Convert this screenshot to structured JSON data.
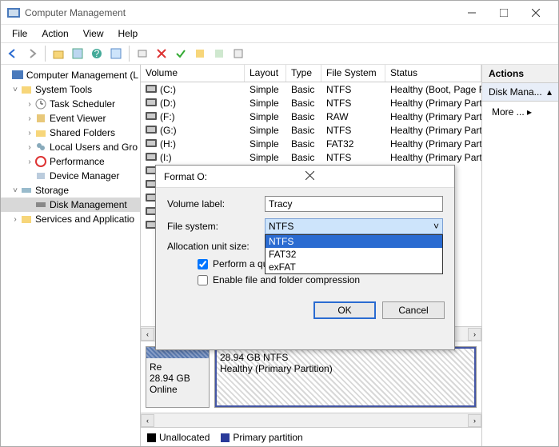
{
  "window": {
    "title": "Computer Management",
    "menus": [
      "File",
      "Action",
      "View",
      "Help"
    ]
  },
  "tree": {
    "root": "Computer Management (L",
    "system_tools": "System Tools",
    "task_scheduler": "Task Scheduler",
    "event_viewer": "Event Viewer",
    "shared_folders": "Shared Folders",
    "local_users": "Local Users and Gro",
    "performance": "Performance",
    "device_manager": "Device Manager",
    "storage": "Storage",
    "disk_management": "Disk Management",
    "services_apps": "Services and Applicatio"
  },
  "columns": {
    "volume": "Volume",
    "layout": "Layout",
    "type": "Type",
    "filesystem": "File System",
    "status": "Status"
  },
  "volumes": [
    {
      "v": "(C:)",
      "l": "Simple",
      "t": "Basic",
      "fs": "NTFS",
      "s": "Healthy (Boot, Page F"
    },
    {
      "v": "(D:)",
      "l": "Simple",
      "t": "Basic",
      "fs": "NTFS",
      "s": "Healthy (Primary Part"
    },
    {
      "v": "(F:)",
      "l": "Simple",
      "t": "Basic",
      "fs": "RAW",
      "s": "Healthy (Primary Part"
    },
    {
      "v": "(G:)",
      "l": "Simple",
      "t": "Basic",
      "fs": "NTFS",
      "s": "Healthy (Primary Part"
    },
    {
      "v": "(H:)",
      "l": "Simple",
      "t": "Basic",
      "fs": "FAT32",
      "s": "Healthy (Primary Part"
    },
    {
      "v": "(I:)",
      "l": "Simple",
      "t": "Basic",
      "fs": "NTFS",
      "s": "Healthy (Primary Part"
    },
    {
      "v": "",
      "l": "",
      "t": "",
      "fs": "",
      "s": "(Primary Part"
    },
    {
      "v": "",
      "l": "",
      "t": "",
      "fs": "",
      "s": "(Primary Part"
    },
    {
      "v": "",
      "l": "",
      "t": "",
      "fs": "",
      "s": "(Primary Part"
    },
    {
      "v": "",
      "l": "",
      "t": "",
      "fs": "",
      "s": "(Primary Part"
    },
    {
      "v": "",
      "l": "",
      "t": "",
      "fs": "",
      "s": "(System, Acti"
    }
  ],
  "graphic": {
    "re_label": "Re",
    "size": "28.94 GB",
    "online": "Online",
    "vol_size": "28.94 GB NTFS",
    "vol_status": "Healthy (Primary Partition)"
  },
  "legend": {
    "unallocated": "Unallocated",
    "primary": "Primary partition",
    "color_unallocated": "#000000",
    "color_primary": "#2a3b9a"
  },
  "actions": {
    "header": "Actions",
    "sub": "Disk Mana...",
    "more": "More ..."
  },
  "dialog": {
    "title": "Format O:",
    "volume_label_lbl": "Volume label:",
    "volume_label_val": "Tracy",
    "filesystem_lbl": "File system:",
    "filesystem_sel": "NTFS",
    "fs_options": [
      "NTFS",
      "FAT32",
      "exFAT"
    ],
    "alloc_lbl": "Allocation unit size:",
    "quick_format": "Perform a quick format",
    "compression": "Enable file and folder compression",
    "ok": "OK",
    "cancel": "Cancel"
  }
}
